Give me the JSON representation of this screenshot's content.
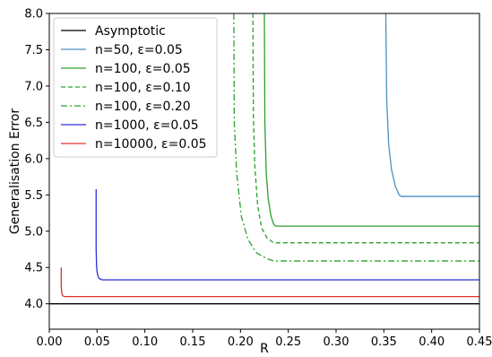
{
  "chart_data": {
    "type": "line",
    "title": "",
    "xlabel": "R",
    "ylabel": "Generalisation Error",
    "xlim": [
      0.0,
      0.45
    ],
    "ylim": [
      3.65,
      8.0
    ],
    "x_ticks": [
      0.0,
      0.05,
      0.1,
      0.15,
      0.2,
      0.25,
      0.3,
      0.35,
      0.4,
      0.45
    ],
    "x_tick_labels": [
      "0.00",
      "0.05",
      "0.10",
      "0.15",
      "0.20",
      "0.25",
      "0.30",
      "0.35",
      "0.40",
      "0.45"
    ],
    "y_ticks": [
      4.0,
      4.5,
      5.0,
      5.5,
      6.0,
      6.5,
      7.0,
      7.5,
      8.0
    ],
    "y_tick_labels": [
      "4.0",
      "4.5",
      "5.0",
      "5.5",
      "6.0",
      "6.5",
      "7.0",
      "7.5",
      "8.0"
    ],
    "grid": false,
    "legend_position": "top-left",
    "series": [
      {
        "name": "Asymptotic",
        "color": "#000000",
        "dash": "solid",
        "points": [
          [
            0.0,
            4.0
          ],
          [
            0.45,
            4.0
          ]
        ]
      },
      {
        "name": "n=50, ε=0.05",
        "color": "#4a90c4",
        "dash": "solid",
        "points": [
          [
            0.352,
            8.0
          ],
          [
            0.353,
            6.8
          ],
          [
            0.355,
            6.2
          ],
          [
            0.358,
            5.85
          ],
          [
            0.362,
            5.62
          ],
          [
            0.366,
            5.5
          ],
          [
            0.368,
            5.48
          ],
          [
            0.45,
            5.48
          ]
        ]
      },
      {
        "name": "n=100, ε=0.05",
        "color": "#2ca02c",
        "dash": "solid",
        "points": [
          [
            0.225,
            8.0
          ],
          [
            0.2255,
            6.5
          ],
          [
            0.227,
            5.8
          ],
          [
            0.229,
            5.45
          ],
          [
            0.232,
            5.2
          ],
          [
            0.235,
            5.09
          ],
          [
            0.237,
            5.07
          ],
          [
            0.45,
            5.07
          ]
        ]
      },
      {
        "name": "n=100, ε=0.10",
        "color": "#2ca02c",
        "dash": "dashed",
        "points": [
          [
            0.213,
            8.0
          ],
          [
            0.2135,
            6.6
          ],
          [
            0.215,
            5.9
          ],
          [
            0.218,
            5.35
          ],
          [
            0.222,
            5.05
          ],
          [
            0.228,
            4.9
          ],
          [
            0.235,
            4.84
          ],
          [
            0.45,
            4.84
          ]
        ]
      },
      {
        "name": "n=100, ε=0.20",
        "color": "#2ca02c",
        "dash": "dashdot",
        "points": [
          [
            0.193,
            8.0
          ],
          [
            0.1935,
            6.5
          ],
          [
            0.196,
            5.8
          ],
          [
            0.201,
            5.2
          ],
          [
            0.208,
            4.88
          ],
          [
            0.217,
            4.7
          ],
          [
            0.228,
            4.62
          ],
          [
            0.235,
            4.59
          ],
          [
            0.45,
            4.59
          ]
        ]
      },
      {
        "name": "n=1000, ε=0.05",
        "color": "#2f2fd6",
        "dash": "solid",
        "points": [
          [
            0.049,
            5.58
          ],
          [
            0.049,
            4.75
          ],
          [
            0.0495,
            4.5
          ],
          [
            0.0505,
            4.4
          ],
          [
            0.052,
            4.35
          ],
          [
            0.055,
            4.33
          ],
          [
            0.45,
            4.33
          ]
        ]
      },
      {
        "name": "n=10000, ε=0.05",
        "color": "#e03030",
        "dash": "solid",
        "points": [
          [
            0.0125,
            4.5
          ],
          [
            0.0125,
            4.25
          ],
          [
            0.013,
            4.15
          ],
          [
            0.014,
            4.11
          ],
          [
            0.016,
            4.1
          ],
          [
            0.45,
            4.1
          ]
        ]
      }
    ]
  }
}
